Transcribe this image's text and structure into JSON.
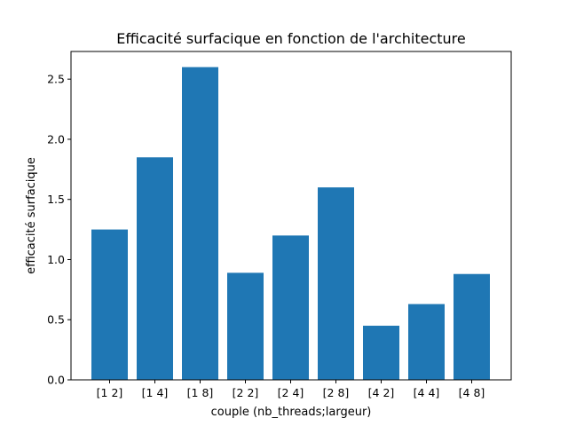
{
  "chart_data": {
    "type": "bar",
    "title": "Efficacité surfacique en fonction de l'architecture",
    "xlabel": "couple (nb_threads;largeur)",
    "ylabel": "efficacité surfacique",
    "categories": [
      "[1 2]",
      "[1 4]",
      "[1 8]",
      "[2 2]",
      "[2 4]",
      "[2 8]",
      "[4 2]",
      "[4 4]",
      "[4 8]"
    ],
    "values": [
      1.25,
      1.85,
      2.6,
      0.89,
      1.2,
      1.6,
      0.45,
      0.63,
      0.88
    ],
    "ylim": [
      0,
      2.73
    ],
    "yticks": [
      "0.0",
      "0.5",
      "1.0",
      "1.5",
      "2.0",
      "2.5"
    ],
    "grid": false,
    "bar_color": "#1f77b4"
  }
}
